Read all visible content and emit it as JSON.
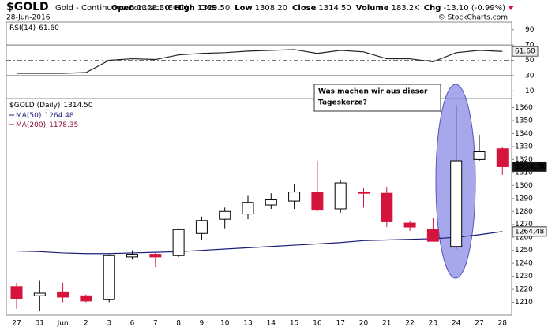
{
  "header": {
    "symbol": "$GOLD",
    "description": "Gold - Continuous Contract (EOD)",
    "exchange": "CME",
    "date": "28-Jun-2016",
    "credit": "© StockCharts.com",
    "quote": [
      {
        "label": "Open",
        "value": "1328.30"
      },
      {
        "label": "High",
        "value": "1329.50"
      },
      {
        "label": "Low",
        "value": "1308.20"
      },
      {
        "label": "Close",
        "value": "1314.50"
      },
      {
        "label": "Volume",
        "value": "183.2K"
      },
      {
        "label": "Chg",
        "value": "-13.10 (-0.99%)"
      }
    ]
  },
  "chart_data": [
    {
      "type": "line",
      "name": "RSI(14)",
      "last_label": "61.60",
      "color": "#222222",
      "values": [
        33,
        33,
        33,
        34,
        50,
        52,
        51,
        57,
        59,
        60,
        62,
        63,
        64,
        59,
        63,
        61,
        52,
        52,
        48,
        60,
        63,
        61.6
      ],
      "ylim": [
        0,
        100
      ],
      "yticks": [
        90,
        70,
        50,
        30,
        10
      ],
      "guide_lines": [
        {
          "value": 70,
          "style": "solid"
        },
        {
          "value": 50,
          "style": "dashed"
        },
        {
          "value": 30,
          "style": "solid"
        }
      ]
    },
    {
      "type": "candlestick",
      "name": "$GOLD (Daily)",
      "last_label": "1314.50",
      "up_color": "#ffffff",
      "down_color": "#d4143c",
      "categories": [
        "27",
        "31",
        "Jun",
        "2",
        "3",
        "6",
        "7",
        "8",
        "9",
        "10",
        "13",
        "14",
        "15",
        "16",
        "17",
        "20",
        "21",
        "22",
        "23",
        "24",
        "27",
        "28"
      ],
      "open": [
        1222,
        1215,
        1218,
        1215,
        1212,
        1245,
        1247,
        1246,
        1263,
        1274,
        1278,
        1285,
        1288,
        1295,
        1282,
        1295,
        1294,
        1271,
        1266,
        1253,
        1320,
        1328.3
      ],
      "high": [
        1225,
        1227,
        1225,
        1216,
        1247,
        1250,
        1248,
        1267,
        1276,
        1283,
        1292,
        1294,
        1301,
        1319,
        1304,
        1298,
        1299,
        1273,
        1275,
        1362,
        1339,
        1329.5
      ],
      "low": [
        1205,
        1203,
        1210,
        1210,
        1210,
        1243,
        1237,
        1245,
        1258,
        1267,
        1274,
        1282,
        1282,
        1280,
        1279,
        1283,
        1268,
        1265,
        1257,
        1251,
        1319,
        1308.2
      ],
      "close": [
        1213,
        1217,
        1214,
        1211,
        1246,
        1247,
        1245,
        1266,
        1273,
        1280,
        1287,
        1289,
        1295,
        1281,
        1302,
        1294,
        1272,
        1268,
        1257,
        1319,
        1326,
        1314.5
      ],
      "ylim": [
        1200,
        1367
      ],
      "yticks": [
        1210,
        1220,
        1230,
        1240,
        1250,
        1260,
        1270,
        1280,
        1290,
        1300,
        1310,
        1320,
        1330,
        1340,
        1350,
        1360
      ],
      "overlays": [
        {
          "name": "MA(50)",
          "color": "#1c1c7a",
          "values": [
            1249.5,
            1249,
            1248,
            1247.5,
            1247.5,
            1248,
            1248.5,
            1249,
            1250,
            1251,
            1252,
            1253,
            1254,
            1255,
            1256,
            1257.5,
            1258,
            1258.5,
            1259,
            1260,
            1262,
            1264.48
          ]
        },
        {
          "name": "MA(200)",
          "color": "#8b0d3a",
          "value": 1178.35
        }
      ],
      "tags": [
        {
          "value": 1314.5,
          "label": "1314.50",
          "style": "dark"
        },
        {
          "value": 1264.48,
          "label": "1264.48",
          "style": "light"
        }
      ],
      "annotation": [
        "Was machen wir aus dieser",
        "Tageskerze?"
      ]
    }
  ]
}
